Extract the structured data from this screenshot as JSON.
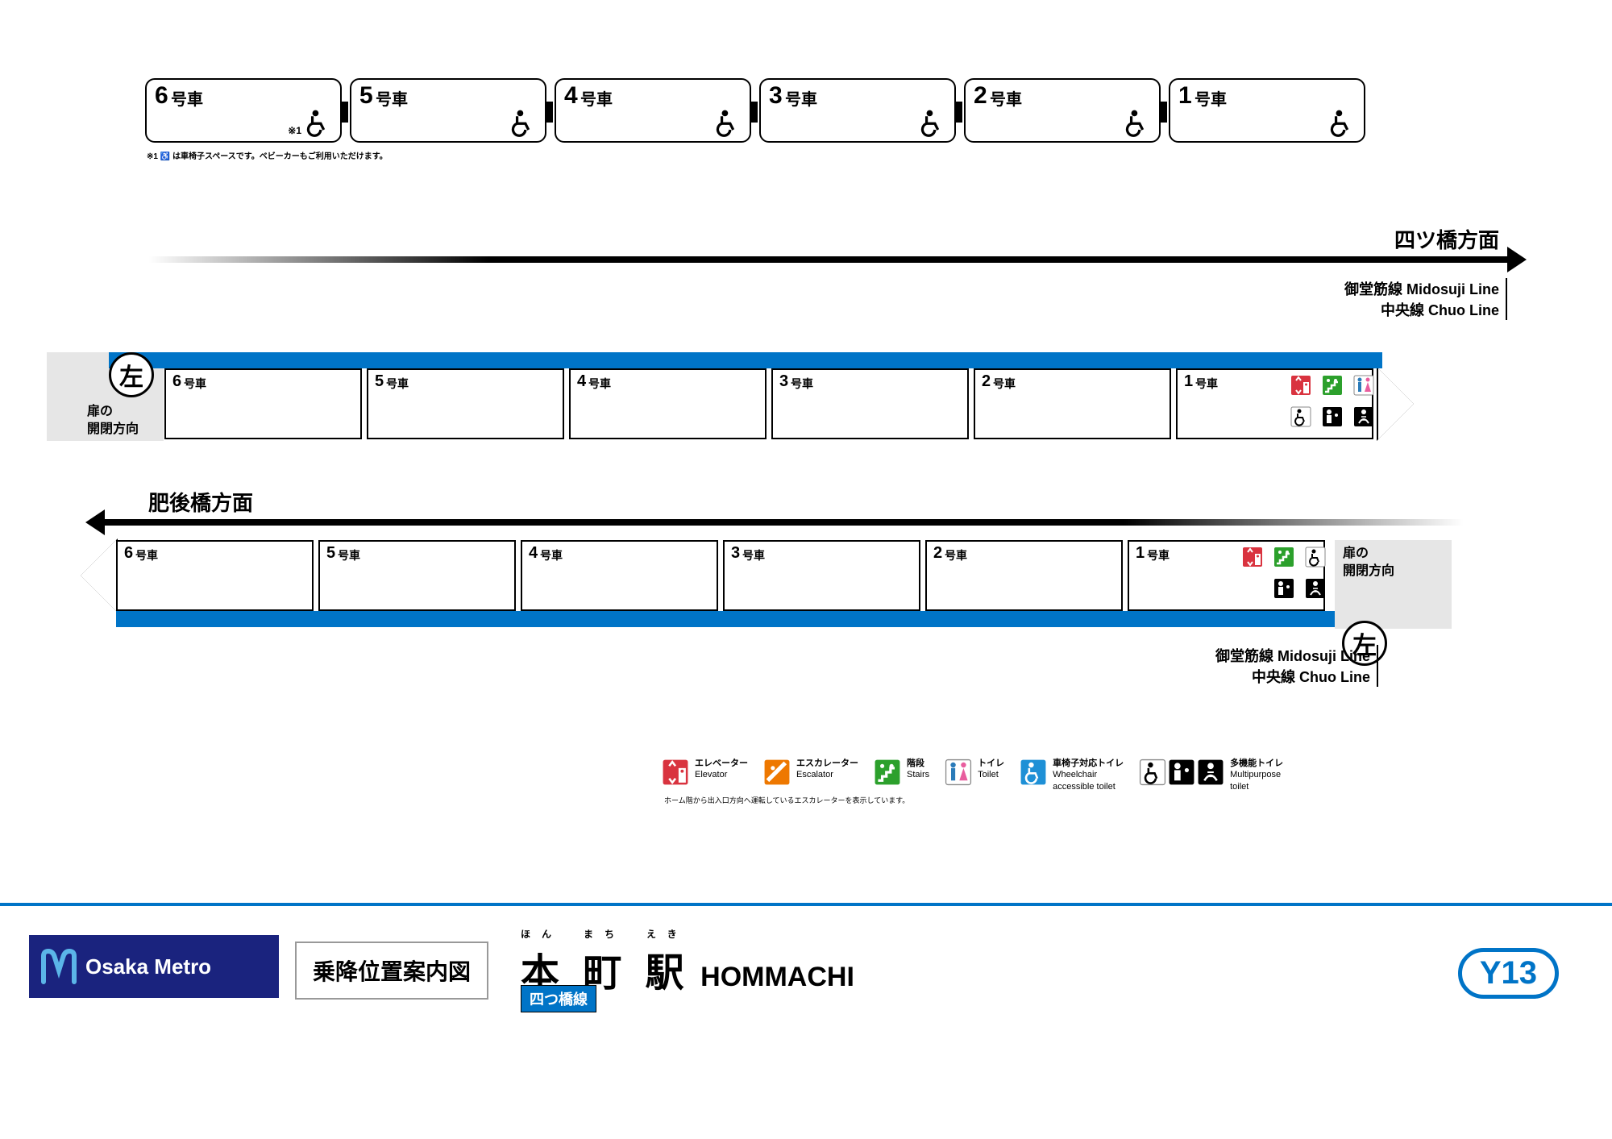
{
  "colors": {
    "line_blue": "#0074c7",
    "elevator_red": "#d9333f",
    "escalator_orange": "#ee7800",
    "stairs_green": "#2ca02c",
    "toilet_m_blue": "#2b7bb9",
    "toilet_f_pink": "#e85d9e",
    "wheelchair_toilet_blue": "#1e90d6",
    "logo_navy": "#1a237e",
    "grey": "#e6e6e6"
  },
  "top_cars": [
    {
      "num": "6",
      "label": "号車",
      "wheelchair": true,
      "note1": true
    },
    {
      "num": "5",
      "label": "号車",
      "wheelchair": true
    },
    {
      "num": "4",
      "label": "号車",
      "wheelchair": true
    },
    {
      "num": "3",
      "label": "号車",
      "wheelchair": true
    },
    {
      "num": "2",
      "label": "号車",
      "wheelchair": true
    },
    {
      "num": "1",
      "label": "号車",
      "wheelchair": true
    }
  ],
  "wheelchair_note": "※1 ♿ は車椅子スペースです。ベビーカーもご利用いただけます。",
  "direction1": "四ツ橋方面",
  "direction2": "肥後橋方面",
  "transfer_lines": [
    {
      "jp": "御堂筋線",
      "en": "Midosuji Line"
    },
    {
      "jp": "中央線",
      "en": "Chuo Line"
    }
  ],
  "left_char": "左",
  "door_label": "扉の\n開閉方向",
  "platform1_cars": [
    "6",
    "5",
    "4",
    "3",
    "2",
    "1"
  ],
  "platform2_cars": [
    "6",
    "5",
    "4",
    "3",
    "2",
    "1"
  ],
  "gosha": "号車",
  "p1_facilities_top": [
    "elevator",
    "stairs"
  ],
  "p1_facilities_bot": [
    "toilet",
    "wheelchair",
    "multi1",
    "multi2"
  ],
  "p2_facilities_top": [
    "elevator",
    "stairs"
  ],
  "p2_facilities_bot": [
    "wheelchair",
    "multi1",
    "multi2"
  ],
  "legend": [
    {
      "icon": "elevator",
      "jp": "エレベーター",
      "en": "Elevator",
      "color": "#d9333f"
    },
    {
      "icon": "escalator",
      "jp": "エスカレーター",
      "en": "Escalator",
      "color": "#ee7800"
    },
    {
      "icon": "stairs",
      "jp": "階段",
      "en": "Stairs",
      "color": "#2ca02c"
    },
    {
      "icon": "toilet",
      "jp": "トイレ",
      "en": "Toilet",
      "color": "#ffffff"
    },
    {
      "icon": "wc_toilet",
      "jp": "車椅子対応トイレ",
      "en": "Wheelchair\naccessible toilet",
      "color": "#1e90d6"
    },
    {
      "icon": "multi",
      "jp": "多機能トイレ",
      "en": "Multipurpose\ntoilet",
      "color": "#ffffff"
    }
  ],
  "legend_note": "ホーム階から出入口方向へ運転しているエスカレーターを表示しています。",
  "footer": {
    "brand": "Osaka Metro",
    "info_box": "乗降位置案内図",
    "furigana": "ほん　まち　えき",
    "kanji": "本 町 駅",
    "roman": "HOMMACHI",
    "line_name": "四つ橋線",
    "station_code": "Y13"
  }
}
